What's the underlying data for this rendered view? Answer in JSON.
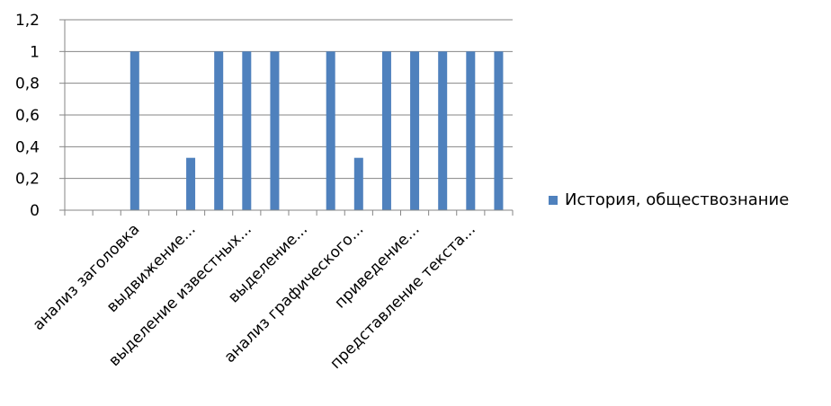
{
  "chart_data": {
    "type": "bar",
    "categories": [
      null,
      null,
      "анализ заголовка",
      null,
      "выдвижение...",
      null,
      "выделение известных...",
      null,
      "выделение...",
      null,
      "анализ графического...",
      null,
      "приведение...",
      null,
      "представление текста...",
      null
    ],
    "series": [
      {
        "name": "История, обществознание",
        "color": "#4f81bd",
        "values": [
          0,
          0,
          1,
          0,
          0.33,
          1,
          1,
          1,
          0,
          1,
          0.33,
          1,
          1,
          1,
          1,
          1
        ]
      }
    ],
    "ylim": [
      0,
      1.2
    ],
    "yticks": [
      0,
      {
        "value": 0.2,
        "label": "0,2"
      },
      {
        "value": 0.4,
        "label": "0,4"
      },
      {
        "value": 0.6,
        "label": "0,6"
      },
      {
        "value": 0.8,
        "label": "0,8"
      },
      1,
      {
        "value": 1.2,
        "label": "1,2"
      }
    ],
    "grid": true,
    "legend": "right"
  }
}
